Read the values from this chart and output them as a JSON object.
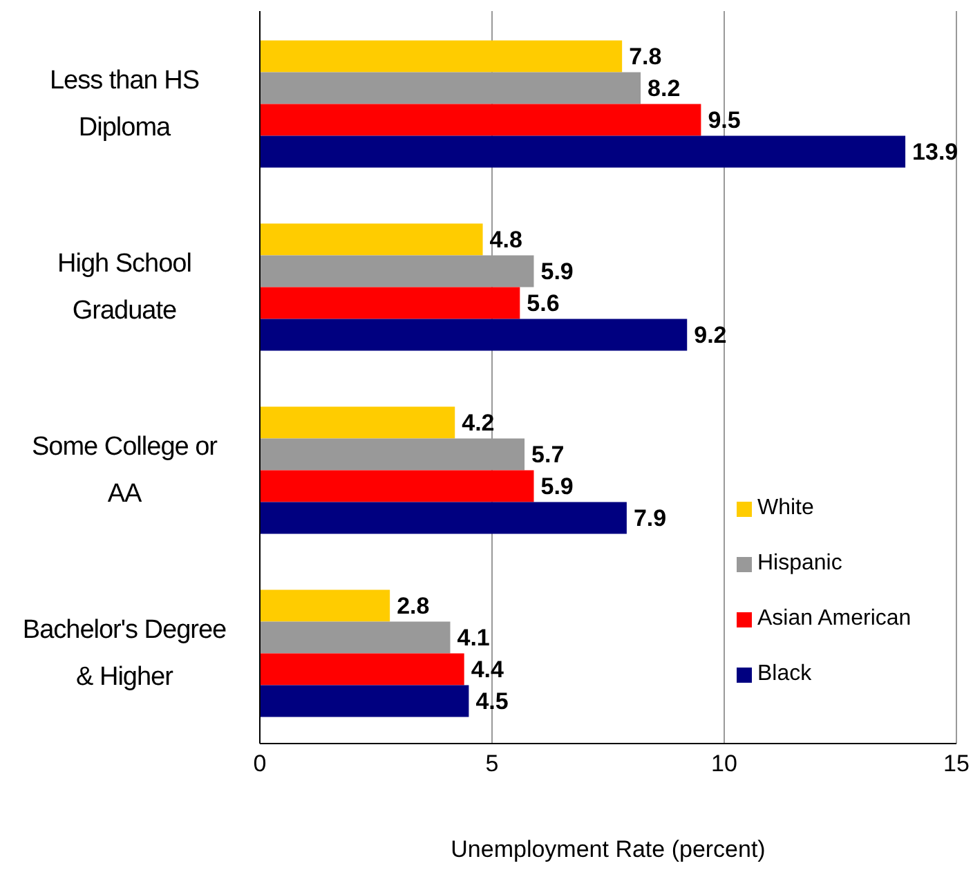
{
  "chart_data": {
    "type": "bar",
    "orientation": "horizontal",
    "xlabel": "Unemployment Rate (percent)",
    "categories": [
      "Less than HS Diploma",
      "High School Graduate",
      "Some College or AA",
      "Bachelor's Degree & Higher"
    ],
    "series": [
      {
        "name": "White",
        "color": "#ffcc00",
        "values": [
          7.8,
          4.8,
          4.2,
          2.8
        ]
      },
      {
        "name": "Hispanic",
        "color": "#999999",
        "values": [
          8.2,
          5.9,
          5.7,
          4.1
        ]
      },
      {
        "name": "Asian American",
        "color": "#ff0000",
        "values": [
          9.5,
          5.6,
          5.9,
          4.4
        ]
      },
      {
        "name": "Black",
        "color": "#000080",
        "values": [
          13.9,
          9.2,
          7.9,
          4.5
        ]
      }
    ],
    "xlim": [
      0,
      15
    ],
    "xticks": [
      0,
      5,
      10,
      15
    ],
    "grid": "x",
    "legend": "bottom right",
    "data_labels": true
  }
}
